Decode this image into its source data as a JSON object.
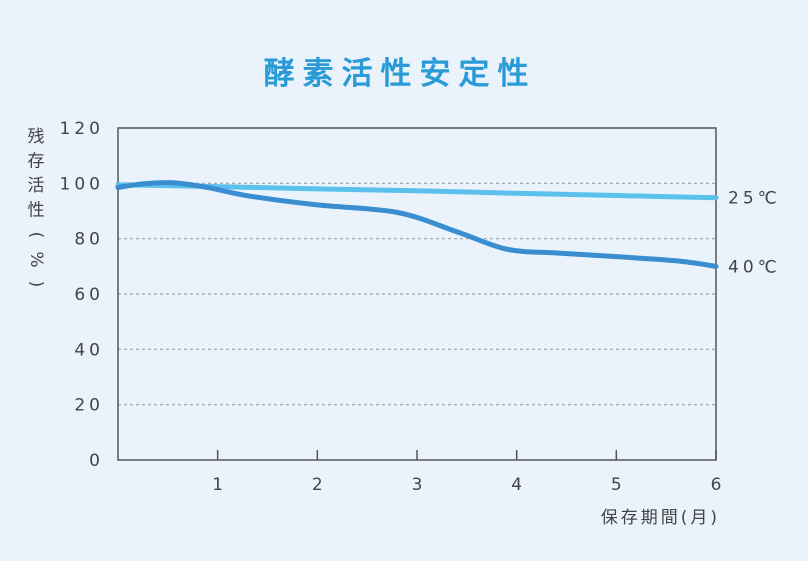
{
  "chart_data": {
    "type": "line",
    "title": "酵素活性安定性",
    "ylabel": "残存活性(%)",
    "xlabel": "保存期間(月)",
    "ylim": [
      0,
      120
    ],
    "xlim": [
      0,
      6
    ],
    "yticks": [
      "0",
      "20",
      "40",
      "60",
      "80",
      "100",
      "120"
    ],
    "xticks": [
      "1",
      "2",
      "3",
      "4",
      "5",
      "6"
    ],
    "grid": "dashed horizontal",
    "series": [
      {
        "name": "25℃",
        "color": "#5bc0eb",
        "x": [
          0,
          1,
          2,
          3,
          4,
          5,
          6
        ],
        "y": [
          99.5,
          98.8,
          98.0,
          97.3,
          96.4,
          95.6,
          94.8
        ]
      },
      {
        "name": "40℃",
        "color": "#3a8ed0",
        "x": [
          0,
          0.25,
          0.55,
          0.9,
          1.3,
          2.0,
          2.8,
          3.4,
          3.9,
          4.4,
          5.0,
          5.6,
          6.0
        ],
        "y": [
          98.5,
          99.8,
          100.2,
          98.5,
          95.5,
          92.2,
          89.5,
          82.5,
          76.2,
          74.8,
          73.5,
          72.0,
          70.0
        ]
      }
    ]
  }
}
